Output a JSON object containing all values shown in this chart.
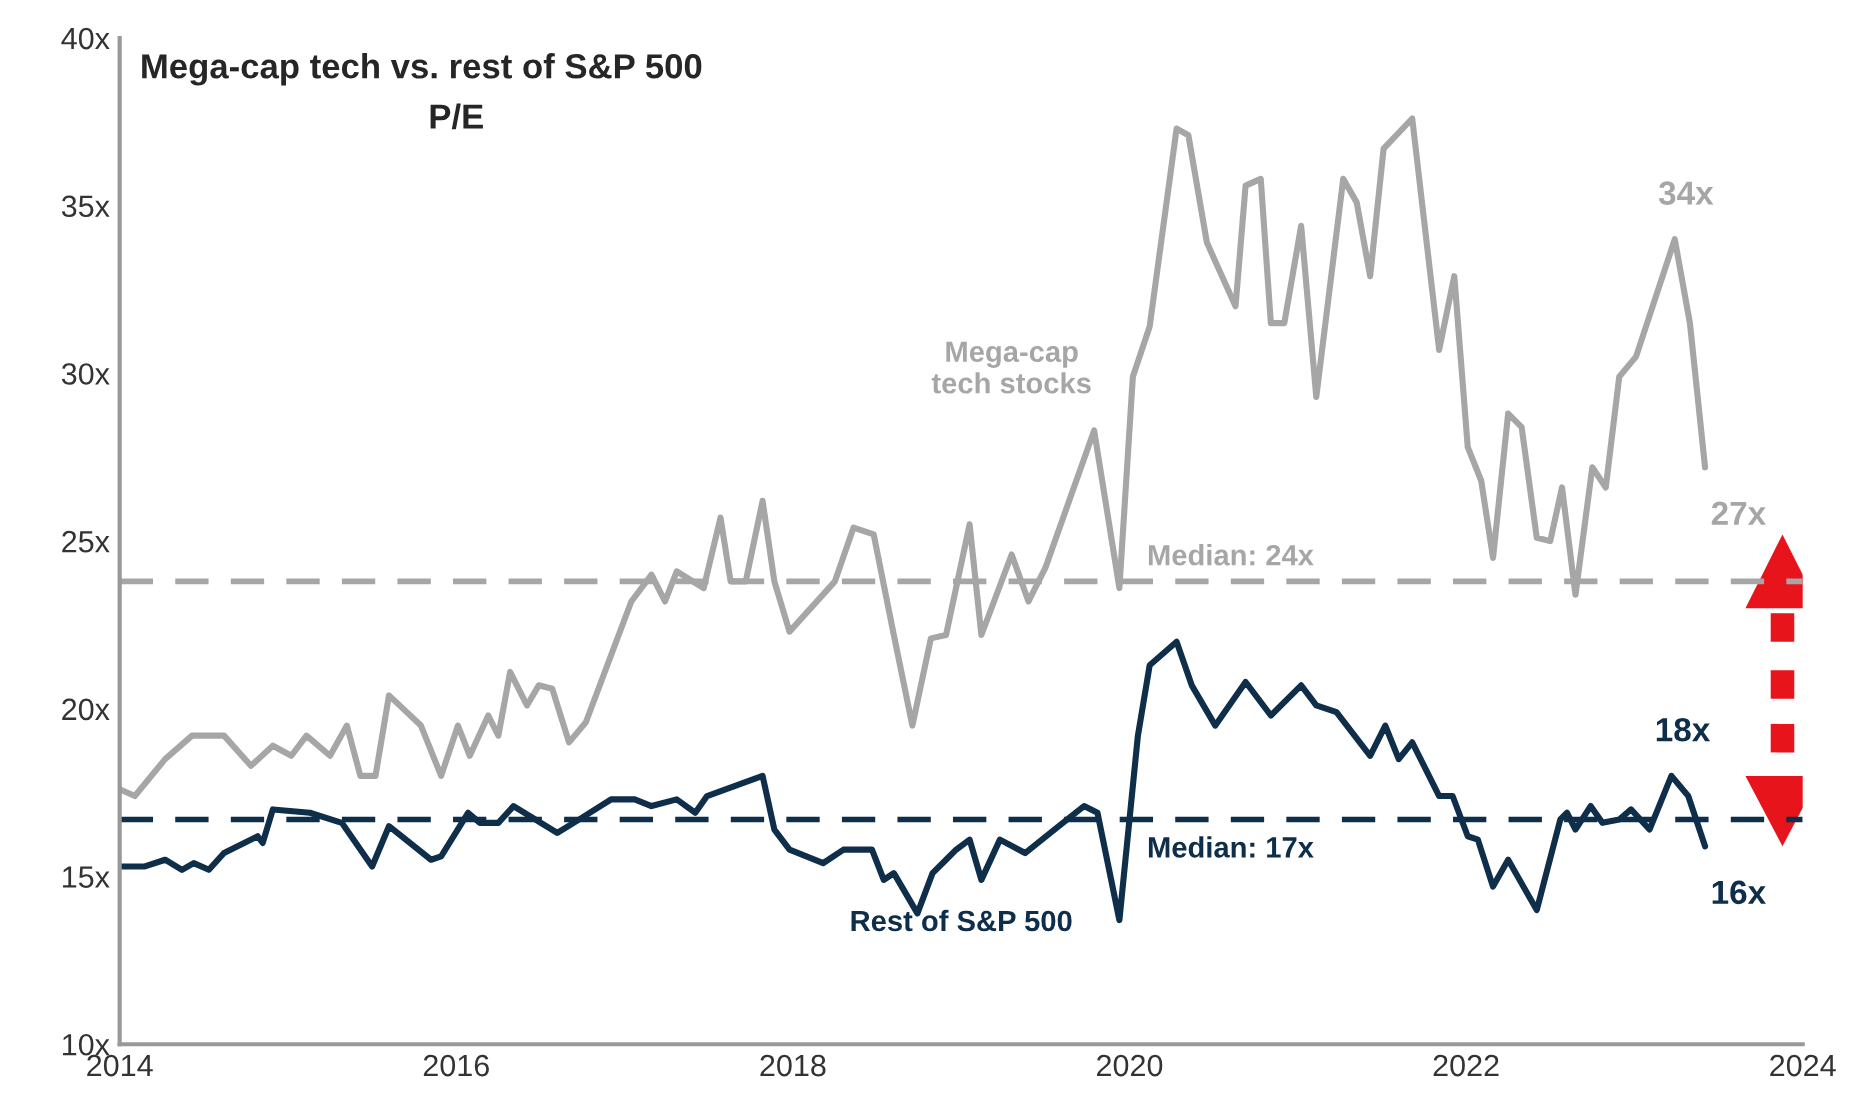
{
  "chart_data": {
    "type": "line",
    "title": "Mega-cap tech vs. rest of S&P 500",
    "subtitle": "P/E",
    "series": [
      {
        "name": "Mega-cap\ntech stocks",
        "color": "#a6a6a6",
        "x": [
          2014.0,
          2014.09,
          2014.27,
          2014.43,
          2014.62,
          2014.78,
          2014.91,
          2015.02,
          2015.11,
          2015.25,
          2015.35,
          2015.43,
          2015.52,
          2015.6,
          2015.79,
          2015.91,
          2016.01,
          2016.08,
          2016.19,
          2016.25,
          2016.32,
          2016.42,
          2016.49,
          2016.57,
          2016.67,
          2016.77,
          2017.04,
          2017.16,
          2017.24,
          2017.31,
          2017.47,
          2017.57,
          2017.63,
          2017.72,
          2017.82,
          2017.89,
          2017.98,
          2018.25,
          2018.36,
          2018.48,
          2018.6,
          2018.71,
          2018.82,
          2018.91,
          2019.05,
          2019.12,
          2019.3,
          2019.4,
          2019.5,
          2019.79,
          2019.94,
          2020.02,
          2020.12,
          2020.28,
          2020.35,
          2020.46,
          2020.63,
          2020.69,
          2020.78,
          2020.84,
          2020.92,
          2021.02,
          2021.11,
          2021.27,
          2021.35,
          2021.43,
          2021.51,
          2021.68,
          2021.84,
          2021.93,
          2022.01,
          2022.09,
          2022.16,
          2022.25,
          2022.33,
          2022.42,
          2022.5,
          2022.57,
          2022.65,
          2022.75,
          2022.83,
          2022.91,
          2023.01,
          2023.24,
          2023.33,
          2023.42
        ],
        "values": [
          17.6,
          17.4,
          18.5,
          19.2,
          19.2,
          18.3,
          18.9,
          18.6,
          19.2,
          18.6,
          19.5,
          18.0,
          18.0,
          20.4,
          19.5,
          18.0,
          19.5,
          18.6,
          19.8,
          19.2,
          21.1,
          20.1,
          20.7,
          20.6,
          19.0,
          19.6,
          23.2,
          24.0,
          23.2,
          24.1,
          23.6,
          25.7,
          23.8,
          23.8,
          26.2,
          23.8,
          22.3,
          23.8,
          25.4,
          25.2,
          22.2,
          19.5,
          22.1,
          22.2,
          25.5,
          22.2,
          24.6,
          23.2,
          24.2,
          28.3,
          23.6,
          29.9,
          31.4,
          37.3,
          37.1,
          33.9,
          32.0,
          35.6,
          35.8,
          31.5,
          31.5,
          34.4,
          29.3,
          35.8,
          35.1,
          32.9,
          36.7,
          37.6,
          30.7,
          32.9,
          27.8,
          26.8,
          24.5,
          28.8,
          28.4,
          25.1,
          25.0,
          26.6,
          23.4,
          27.2,
          26.6,
          29.9,
          30.5,
          34.0,
          31.5,
          27.2
        ]
      },
      {
        "name": "Rest of S&P 500",
        "color": "#0f2e4a",
        "x": [
          2014.0,
          2014.15,
          2014.27,
          2014.37,
          2014.44,
          2014.53,
          2014.62,
          2014.82,
          2014.85,
          2014.91,
          2015.13,
          2015.32,
          2015.5,
          2015.6,
          2015.85,
          2015.91,
          2016.07,
          2016.14,
          2016.25,
          2016.34,
          2016.6,
          2016.73,
          2016.92,
          2017.06,
          2017.16,
          2017.31,
          2017.42,
          2017.49,
          2017.82,
          2017.89,
          2017.98,
          2018.18,
          2018.3,
          2018.47,
          2018.54,
          2018.6,
          2018.74,
          2018.83,
          2018.91,
          2018.97,
          2019.05,
          2019.12,
          2019.23,
          2019.38,
          2019.58,
          2019.73,
          2019.81,
          2019.94,
          2020.05,
          2020.12,
          2020.28,
          2020.37,
          2020.51,
          2020.69,
          2020.84,
          2021.02,
          2021.11,
          2021.23,
          2021.43,
          2021.52,
          2021.6,
          2021.68,
          2021.84,
          2021.92,
          2022.01,
          2022.07,
          2022.16,
          2022.25,
          2022.42,
          2022.56,
          2022.6,
          2022.65,
          2022.74,
          2022.81,
          2022.91,
          2022.98,
          2023.09,
          2023.22,
          2023.32,
          2023.42
        ],
        "values": [
          15.3,
          15.3,
          15.5,
          15.2,
          15.4,
          15.2,
          15.7,
          16.2,
          16.0,
          17.0,
          16.9,
          16.6,
          15.3,
          16.5,
          15.5,
          15.6,
          16.9,
          16.6,
          16.6,
          17.1,
          16.3,
          16.7,
          17.3,
          17.3,
          17.1,
          17.3,
          16.9,
          17.4,
          18.0,
          16.4,
          15.8,
          15.4,
          15.8,
          15.8,
          14.9,
          15.1,
          13.9,
          15.1,
          15.5,
          15.8,
          16.1,
          14.9,
          16.1,
          15.7,
          16.5,
          17.1,
          16.9,
          13.7,
          19.2,
          21.3,
          22.0,
          20.7,
          19.5,
          20.8,
          19.8,
          20.7,
          20.1,
          19.9,
          18.6,
          19.5,
          18.5,
          19.0,
          17.4,
          17.4,
          16.2,
          16.1,
          14.7,
          15.5,
          14.0,
          16.7,
          16.9,
          16.4,
          17.1,
          16.6,
          16.7,
          17.0,
          16.4,
          18.0,
          17.4,
          15.9
        ]
      }
    ],
    "xlim": [
      2014,
      2024
    ],
    "xticks": [
      2014,
      2016,
      2018,
      2020,
      2022,
      2024
    ],
    "ylim": [
      10,
      40
    ],
    "yticks": [
      {
        "value": 10,
        "label": "10x"
      },
      {
        "value": 15,
        "label": "15x"
      },
      {
        "value": 20,
        "label": "20x"
      },
      {
        "value": 25,
        "label": "25x"
      },
      {
        "value": 30,
        "label": "30x"
      },
      {
        "value": 35,
        "label": "35x"
      },
      {
        "value": 40,
        "label": "40x"
      }
    ],
    "ref_lines": [
      {
        "axis": "y",
        "value": 23.8,
        "label": "Median: 24x",
        "color": "#a6a6a6",
        "line_style": "dashed"
      },
      {
        "axis": "y",
        "value": 16.7,
        "label": "Median: 17x",
        "color": "#0f2e4a",
        "line_style": "dashed"
      }
    ],
    "annotations": [
      {
        "text": "34x",
        "x": 2023.24,
        "y": 34.0
      },
      {
        "text": "27x",
        "x": 2023.42,
        "y": 27.2
      },
      {
        "text": "18x",
        "x": 2023.22,
        "y": 18.0
      },
      {
        "text": "16x",
        "x": 2023.42,
        "y": 15.9
      }
    ],
    "grid": false,
    "legend": false,
    "marker": "none",
    "line_style": "solid"
  }
}
